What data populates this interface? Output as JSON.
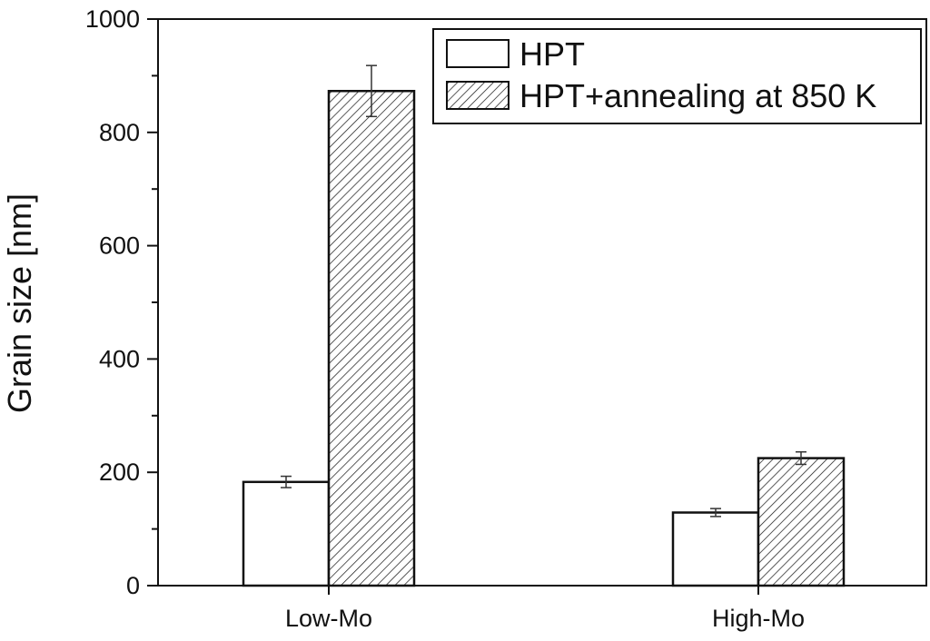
{
  "chart_data": {
    "type": "bar",
    "categories": [
      "Low-Mo",
      "High-Mo"
    ],
    "series": [
      {
        "name": "HPT",
        "values": [
          183,
          129
        ],
        "errors": [
          10,
          7
        ],
        "pattern": "solid",
        "fill": "#ffffff"
      },
      {
        "name": "HPT+annealing at 850 K",
        "values": [
          873,
          225
        ],
        "errors": [
          45,
          11
        ],
        "pattern": "hatched",
        "fill": "#ffffff"
      }
    ],
    "title": "",
    "xlabel": "",
    "ylabel": "Grain size [nm]",
    "ylim": [
      0,
      1000
    ],
    "yticks": [
      0,
      200,
      400,
      600,
      800,
      1000
    ],
    "ytick_labels": [
      "0",
      "200",
      "400",
      "600",
      "800",
      "1000"
    ],
    "legend_position": "top-right",
    "grid": false,
    "colors": {
      "axis": "#111111",
      "bar_edge": "#111111",
      "hatch": "#111111"
    }
  }
}
